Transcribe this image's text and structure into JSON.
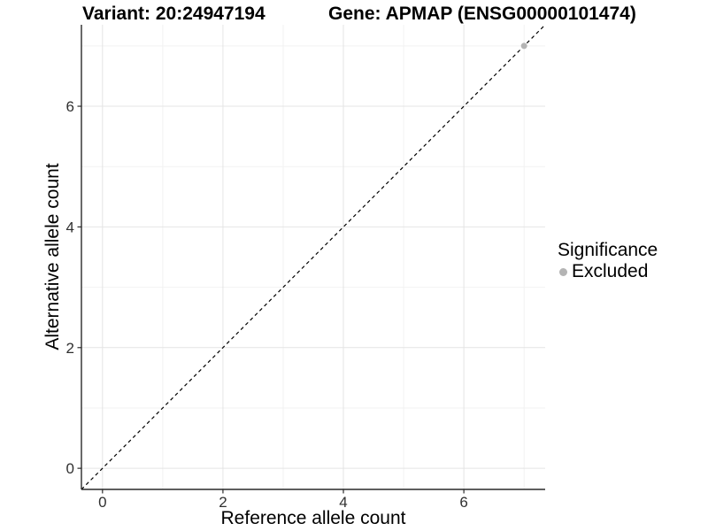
{
  "chart_data": {
    "type": "scatter",
    "titles": {
      "left": "Variant: 20:24947194",
      "right": "Gene: APMAP (ENSG00000101474)"
    },
    "xlabel": "Reference allele count",
    "ylabel": "Alternative allele count",
    "xlim": [
      -0.35,
      7.35
    ],
    "ylim": [
      -0.35,
      7.35
    ],
    "x_major_ticks": [
      0,
      2,
      4,
      6
    ],
    "x_minor_ticks": [
      1,
      3,
      5,
      7
    ],
    "y_major_ticks": [
      0,
      2,
      4,
      6
    ],
    "y_minor_ticks": [
      1,
      3,
      5,
      7
    ],
    "grid": "major+minor",
    "reference_line": {
      "style": "dashed",
      "slope": 1,
      "intercept": 0,
      "color": "#000000"
    },
    "series": [
      {
        "name": "Excluded",
        "color": "#b4b4b4",
        "points": [
          {
            "x": 7,
            "y": 7
          }
        ]
      }
    ],
    "legend": {
      "title": "Significance",
      "position": "right",
      "items": [
        {
          "label": "Excluded",
          "color": "#b4b4b4"
        }
      ]
    }
  },
  "colors": {
    "background": "#ffffff",
    "grid_major": "#e4e4e4",
    "grid_minor": "#f2f2f2",
    "axis_line": "#2a2a2a",
    "tick_label": "#303030",
    "text": "#000000"
  }
}
